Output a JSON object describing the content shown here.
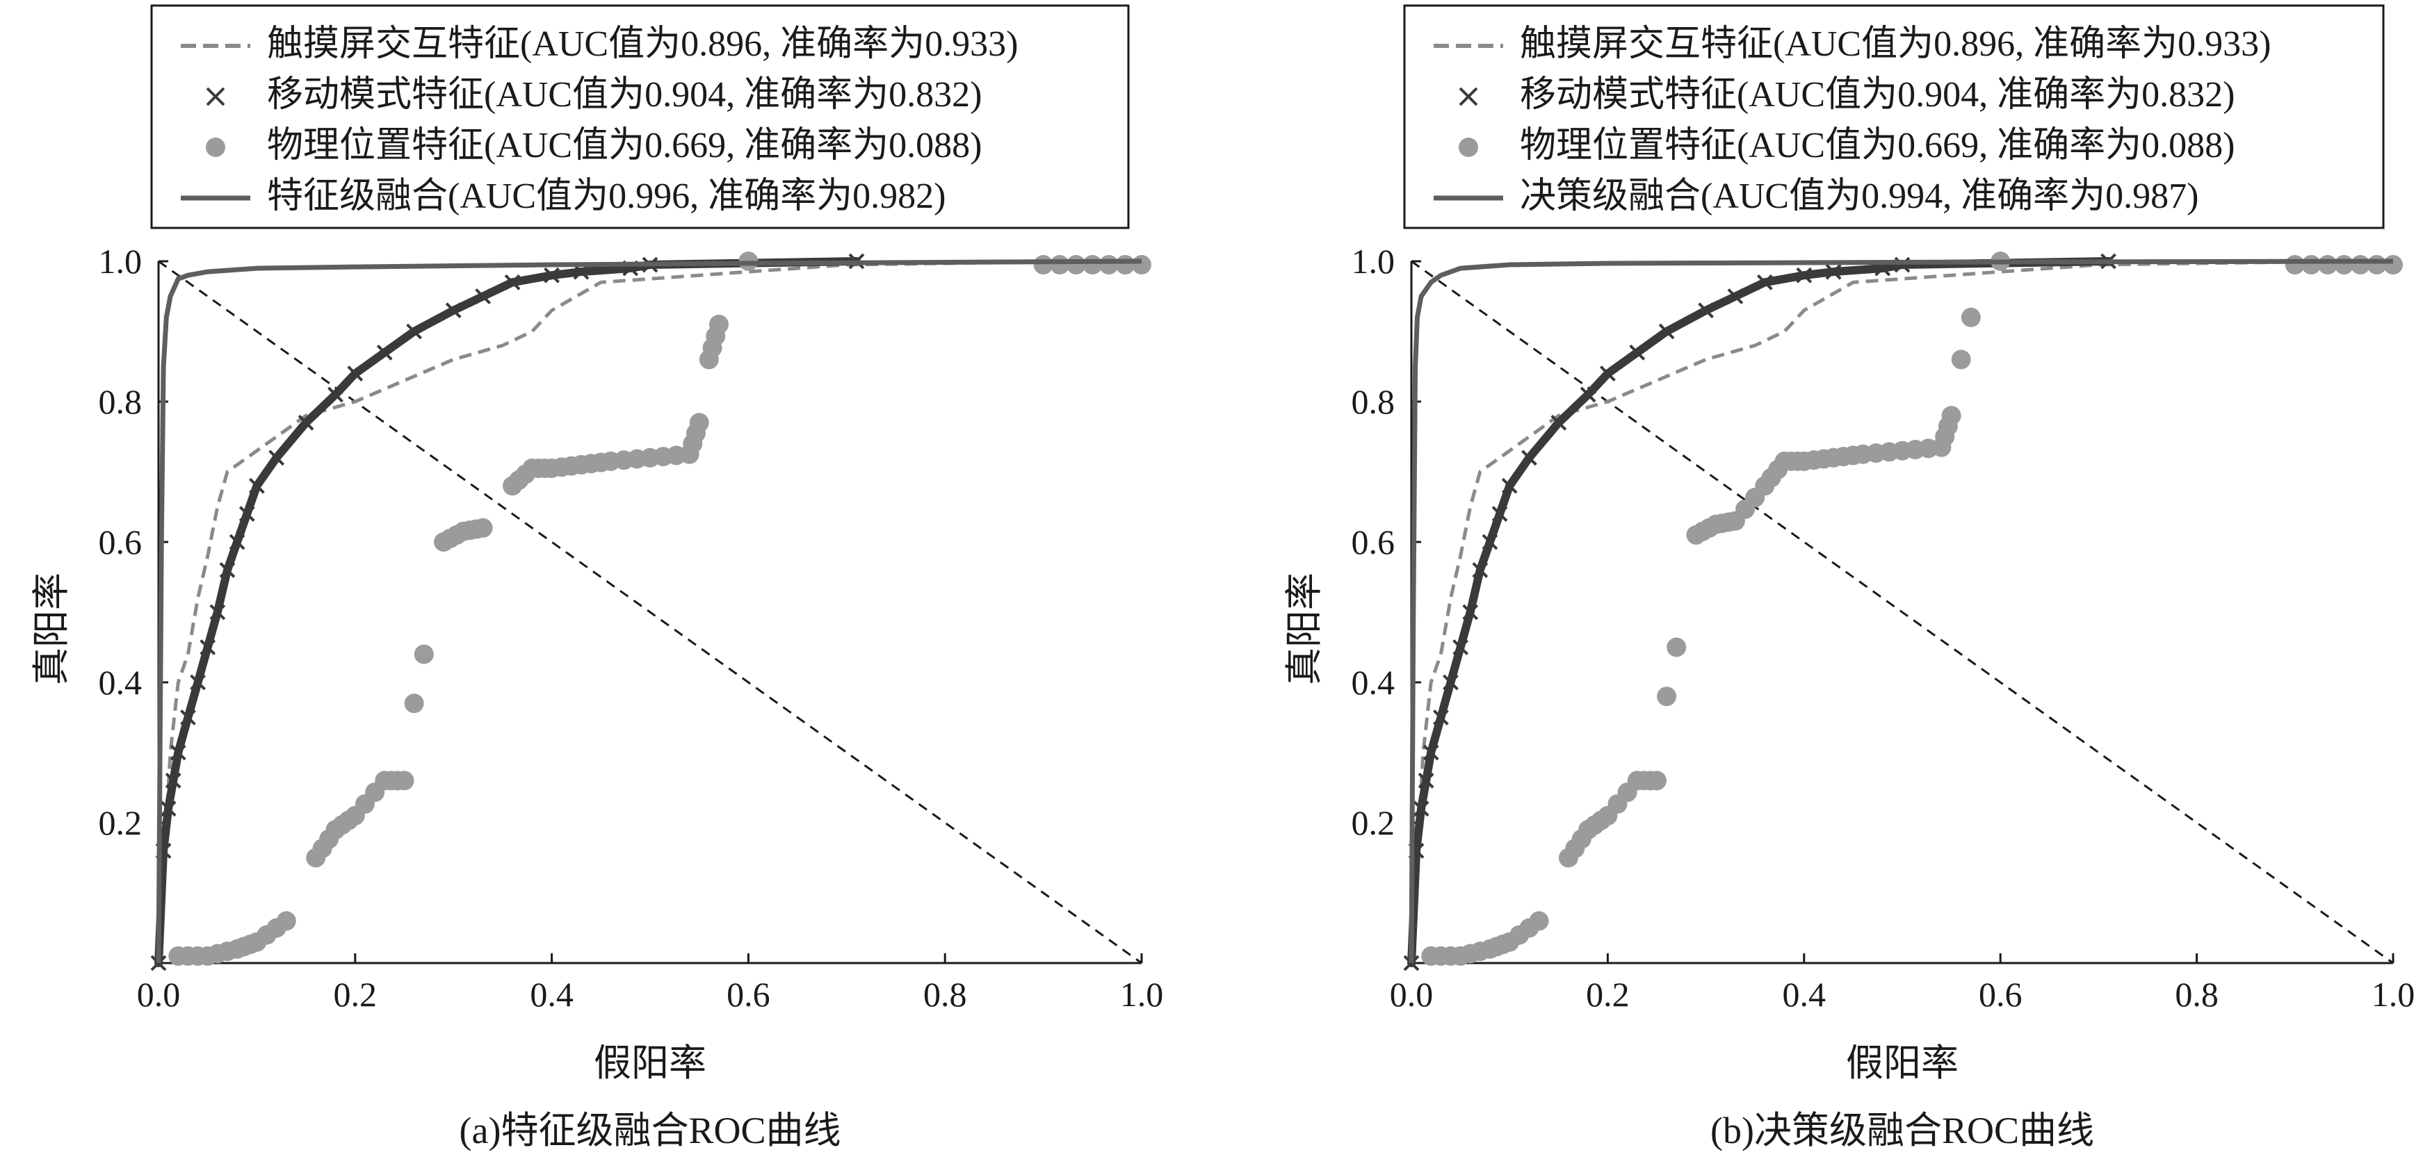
{
  "chart_data": [
    {
      "type": "line",
      "caption": "(a)特征级融合ROC曲线",
      "xlabel": "假阳率",
      "ylabel": "真阳率",
      "xlim": [
        0,
        1
      ],
      "ylim": [
        0,
        1
      ],
      "xticks": [
        "0.0",
        "0.2",
        "0.4",
        "0.6",
        "0.8",
        "1.0"
      ],
      "yticks": [
        "0.2",
        "0.4",
        "0.6",
        "0.8",
        "1.0"
      ],
      "legend_position": "top",
      "grid": false,
      "reference_line": {
        "style": "dashed",
        "from": [
          0,
          1
        ],
        "to": [
          1,
          0
        ]
      },
      "series": [
        {
          "name": "触摸屏交互特征(AUC值为0.896, 准确率为0.933)",
          "style": "dashed",
          "color": "#8a8a8a",
          "x": [
            0,
            0.003,
            0.008,
            0.012,
            0.02,
            0.03,
            0.04,
            0.05,
            0.06,
            0.07,
            0.08,
            0.09,
            0.1,
            0.12,
            0.15,
            0.2,
            0.25,
            0.3,
            0.35,
            0.38,
            0.4,
            0.45,
            0.5,
            0.55,
            0.6,
            0.65,
            0.7,
            0.8,
            0.9,
            1.0
          ],
          "y": [
            0,
            0.1,
            0.2,
            0.3,
            0.4,
            0.44,
            0.52,
            0.58,
            0.65,
            0.7,
            0.71,
            0.72,
            0.73,
            0.75,
            0.78,
            0.8,
            0.83,
            0.86,
            0.88,
            0.9,
            0.93,
            0.97,
            0.975,
            0.98,
            0.985,
            0.99,
            0.995,
            0.997,
            0.999,
            1.0
          ]
        },
        {
          "name": "移动模式特征(AUC值为0.904, 准确率为0.832)",
          "marker": "x",
          "color": "#3a3a3a",
          "x": [
            0,
            0.005,
            0.01,
            0.015,
            0.02,
            0.03,
            0.04,
            0.05,
            0.06,
            0.07,
            0.08,
            0.09,
            0.1,
            0.12,
            0.15,
            0.18,
            0.2,
            0.23,
            0.26,
            0.3,
            0.33,
            0.36,
            0.4,
            0.43,
            0.48,
            0.5,
            0.71
          ],
          "y": [
            0,
            0.16,
            0.22,
            0.26,
            0.3,
            0.35,
            0.4,
            0.45,
            0.5,
            0.56,
            0.6,
            0.64,
            0.68,
            0.72,
            0.77,
            0.81,
            0.84,
            0.87,
            0.9,
            0.93,
            0.95,
            0.97,
            0.98,
            0.985,
            0.99,
            0.995,
            1.0
          ]
        },
        {
          "name": "物理位置特征(AUC值为0.669, 准确率为0.088)",
          "marker": "circle",
          "color": "#9b9b9b",
          "x": [
            0.02,
            0.05,
            0.08,
            0.1,
            0.13,
            0.16,
            0.18,
            0.2,
            0.23,
            0.25,
            0.26,
            0.27,
            0.29,
            0.31,
            0.33,
            0.36,
            0.38,
            0.4,
            0.43,
            0.46,
            0.5,
            0.54,
            0.55,
            0.56,
            0.57,
            0.6,
            0.9,
            0.95,
            1.0
          ],
          "y": [
            0.01,
            0.01,
            0.02,
            0.03,
            0.06,
            0.15,
            0.19,
            0.21,
            0.26,
            0.26,
            0.37,
            0.44,
            0.6,
            0.615,
            0.62,
            0.68,
            0.705,
            0.705,
            0.71,
            0.715,
            0.72,
            0.725,
            0.77,
            0.86,
            0.91,
            1.0,
            0.995,
            0.995,
            0.995
          ]
        },
        {
          "name": "特征级融合(AUC值为0.996, 准确率为0.982)",
          "style": "solid",
          "color": "#5e5e5e",
          "x": [
            0,
            0.003,
            0.005,
            0.008,
            0.012,
            0.02,
            0.03,
            0.05,
            0.1,
            0.2,
            0.4,
            0.6,
            1.0
          ],
          "y": [
            0,
            0.6,
            0.85,
            0.92,
            0.95,
            0.975,
            0.98,
            0.985,
            0.99,
            0.992,
            0.995,
            0.997,
            1.0
          ]
        }
      ]
    },
    {
      "type": "line",
      "caption": "(b)决策级融合ROC曲线",
      "xlabel": "假阳率",
      "ylabel": "真阳率",
      "xlim": [
        0,
        1
      ],
      "ylim": [
        0,
        1
      ],
      "xticks": [
        "0.0",
        "0.2",
        "0.4",
        "0.6",
        "0.8",
        "1.0"
      ],
      "yticks": [
        "0.2",
        "0.4",
        "0.6",
        "0.8",
        "1.0"
      ],
      "legend_position": "top",
      "grid": false,
      "reference_line": {
        "style": "dashed",
        "from": [
          0,
          1
        ],
        "to": [
          1,
          0
        ]
      },
      "series": [
        {
          "name": "触摸屏交互特征(AUC值为0.896, 准确率为0.933)",
          "style": "dashed",
          "color": "#8a8a8a",
          "x": [
            0,
            0.003,
            0.008,
            0.012,
            0.02,
            0.03,
            0.04,
            0.05,
            0.06,
            0.07,
            0.08,
            0.09,
            0.1,
            0.12,
            0.15,
            0.2,
            0.25,
            0.3,
            0.35,
            0.38,
            0.4,
            0.45,
            0.5,
            0.55,
            0.6,
            0.65,
            0.7,
            0.8,
            0.9,
            1.0
          ],
          "y": [
            0,
            0.1,
            0.2,
            0.3,
            0.4,
            0.44,
            0.52,
            0.58,
            0.65,
            0.7,
            0.71,
            0.72,
            0.73,
            0.75,
            0.78,
            0.8,
            0.83,
            0.86,
            0.88,
            0.9,
            0.93,
            0.97,
            0.975,
            0.98,
            0.985,
            0.99,
            0.995,
            0.997,
            0.999,
            1.0
          ]
        },
        {
          "name": "移动模式特征(AUC值为0.904, 准确率为0.832)",
          "marker": "x",
          "color": "#3a3a3a",
          "x": [
            0,
            0.005,
            0.01,
            0.015,
            0.02,
            0.03,
            0.04,
            0.05,
            0.06,
            0.07,
            0.08,
            0.09,
            0.1,
            0.12,
            0.15,
            0.18,
            0.2,
            0.23,
            0.26,
            0.3,
            0.33,
            0.36,
            0.4,
            0.43,
            0.48,
            0.5,
            0.71
          ],
          "y": [
            0,
            0.16,
            0.22,
            0.26,
            0.3,
            0.35,
            0.4,
            0.45,
            0.5,
            0.56,
            0.6,
            0.64,
            0.68,
            0.72,
            0.77,
            0.81,
            0.84,
            0.87,
            0.9,
            0.93,
            0.95,
            0.97,
            0.98,
            0.985,
            0.99,
            0.995,
            1.0
          ]
        },
        {
          "name": "物理位置特征(AUC值为0.669, 准确率为0.088)",
          "marker": "circle",
          "color": "#9b9b9b",
          "x": [
            0.02,
            0.05,
            0.08,
            0.1,
            0.13,
            0.16,
            0.18,
            0.2,
            0.23,
            0.25,
            0.26,
            0.27,
            0.29,
            0.31,
            0.33,
            0.36,
            0.38,
            0.4,
            0.43,
            0.46,
            0.5,
            0.54,
            0.55,
            0.56,
            0.57,
            0.6,
            0.9,
            0.95,
            1.0
          ],
          "y": [
            0.01,
            0.01,
            0.02,
            0.03,
            0.06,
            0.15,
            0.19,
            0.21,
            0.26,
            0.26,
            0.38,
            0.45,
            0.61,
            0.625,
            0.63,
            0.68,
            0.715,
            0.715,
            0.72,
            0.725,
            0.73,
            0.735,
            0.78,
            0.86,
            0.92,
            1.0,
            0.995,
            0.995,
            0.995
          ]
        },
        {
          "name": "决策级融合(AUC值为0.994, 准确率为0.987)",
          "style": "solid",
          "color": "#5e5e5e",
          "x": [
            0,
            0.002,
            0.004,
            0.006,
            0.01,
            0.02,
            0.03,
            0.05,
            0.1,
            0.2,
            0.4,
            0.6,
            1.0
          ],
          "y": [
            0,
            0.5,
            0.85,
            0.92,
            0.95,
            0.97,
            0.98,
            0.99,
            0.995,
            0.997,
            0.998,
            0.999,
            1.0
          ]
        }
      ]
    }
  ]
}
